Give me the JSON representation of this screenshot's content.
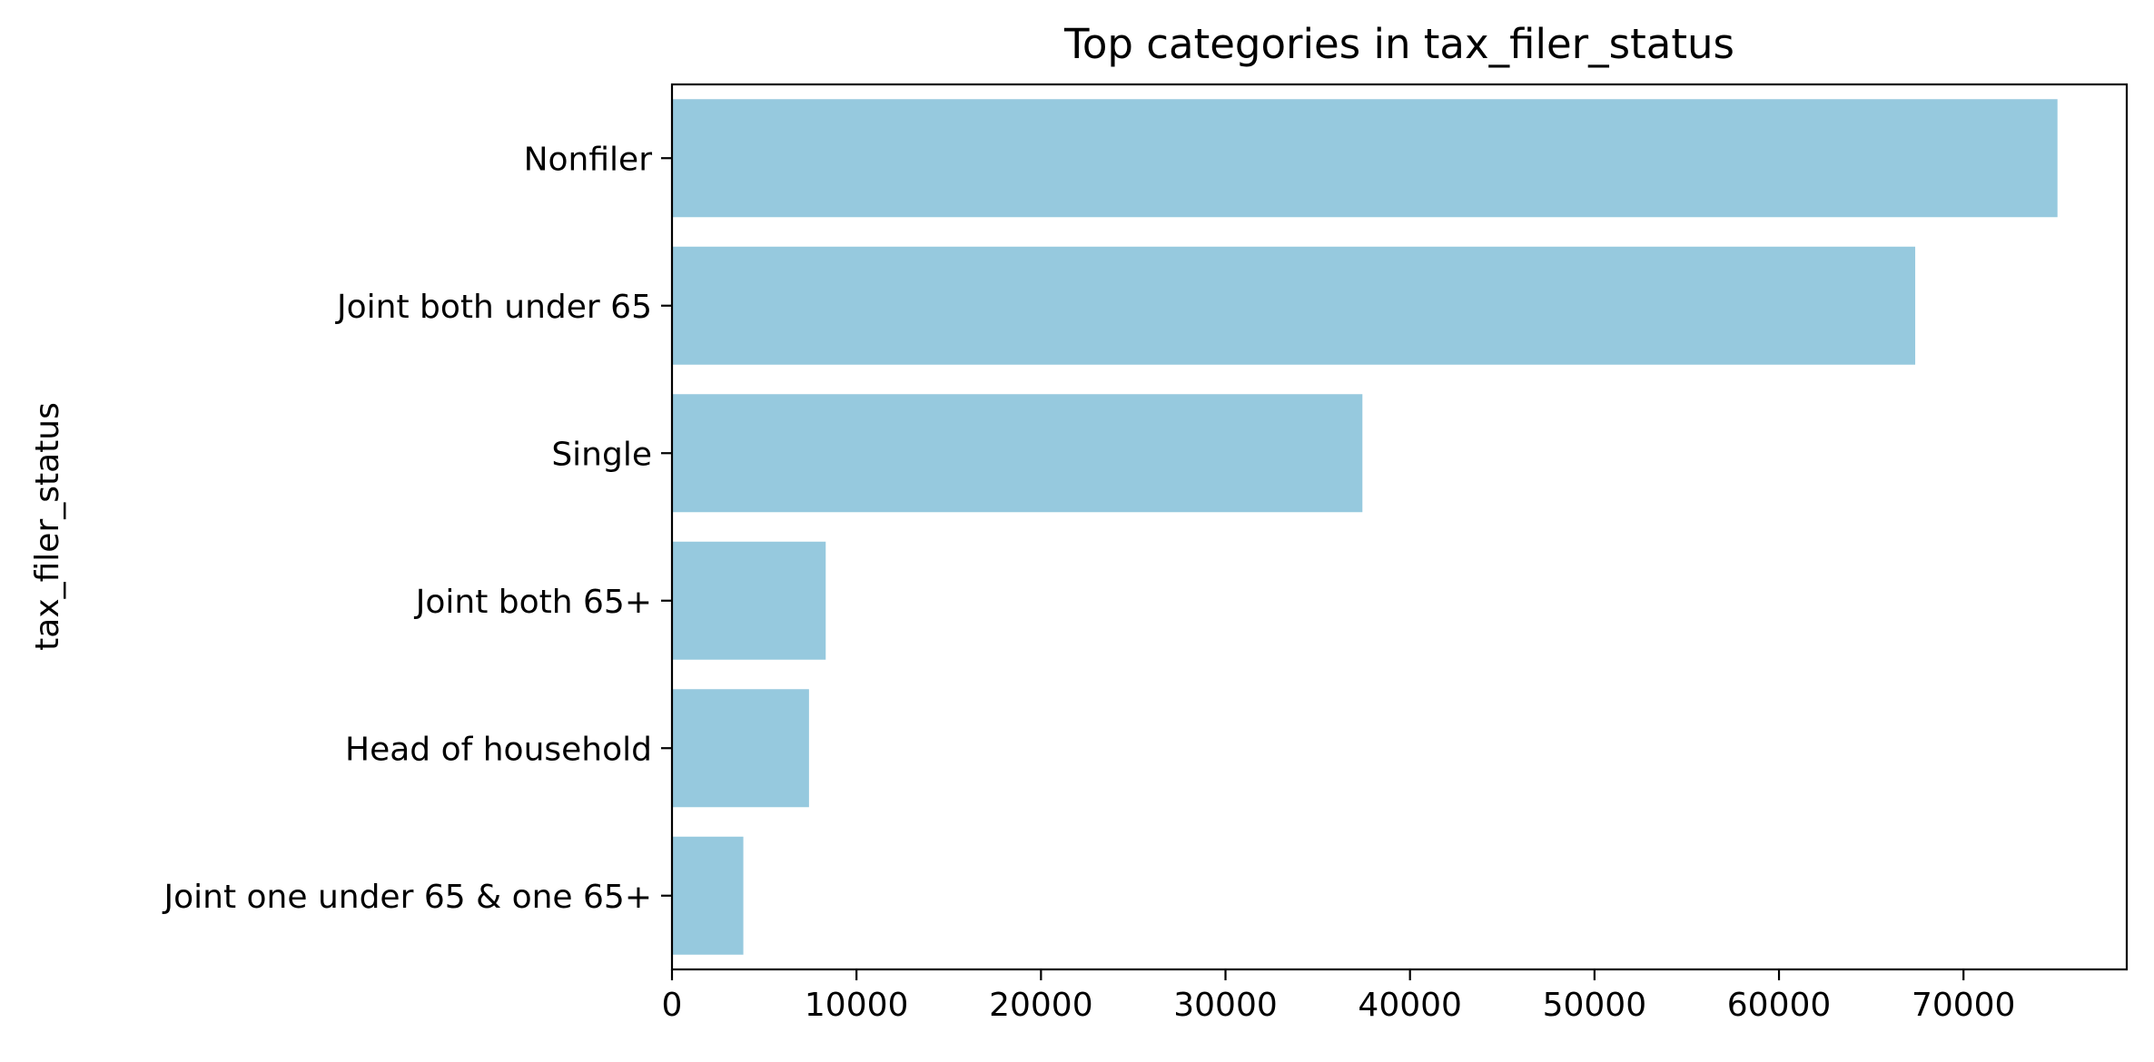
{
  "chart_data": {
    "type": "bar",
    "orientation": "horizontal",
    "title": "Top categories in tax_filer_status",
    "xlabel": "",
    "ylabel": "tax_filer_status",
    "categories": [
      "Nonfiler",
      "Joint both under 65",
      "Single",
      "Joint both 65+",
      "Head of household",
      "Joint one under 65 & one 65+"
    ],
    "values": [
      75094,
      67383,
      37421,
      8332,
      7426,
      3867
    ],
    "xlim": [
      0,
      78849
    ],
    "xticks": [
      0,
      10000,
      20000,
      30000,
      40000,
      50000,
      60000,
      70000
    ],
    "xtick_labels": [
      "0",
      "10000",
      "20000",
      "30000",
      "40000",
      "50000",
      "60000",
      "70000"
    ],
    "bar_color": "#96c9de",
    "grid": false,
    "legend": "none"
  }
}
